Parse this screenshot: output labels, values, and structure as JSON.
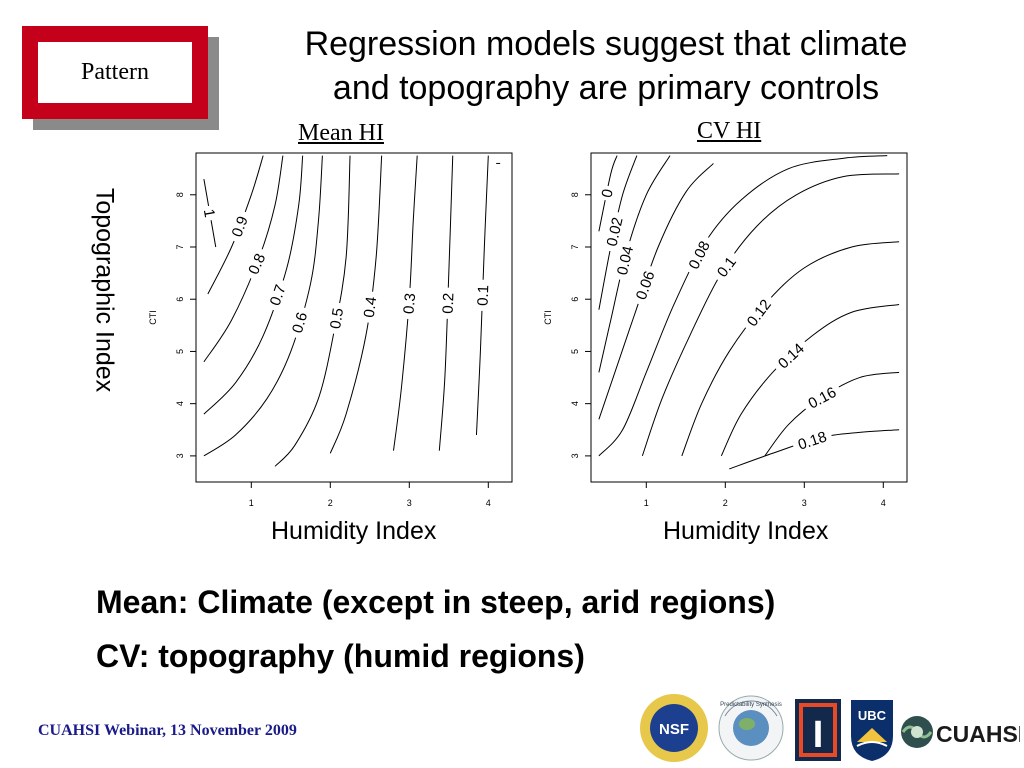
{
  "slide": {
    "tag": "Pattern",
    "title_line1": "Regression models suggest that climate",
    "title_line2": "and topography are primary controls",
    "row_label": "Topographic Index",
    "bullet1": "Mean:  Climate (except in steep, arid regions)",
    "bullet2": "CV: topography (humid regions)",
    "footer": "CUAHSI Webinar, 13 November 2009",
    "logos": [
      {
        "icon": "nsf-logo",
        "text": "NSF"
      },
      {
        "icon": "predictability-globe-logo",
        "text": "Predictability Synthesis"
      },
      {
        "icon": "illinois-logo",
        "text": "I"
      },
      {
        "icon": "ubc-logo",
        "text": "UBC"
      },
      {
        "icon": "cuahsi-logo",
        "text": "CUAHSI"
      }
    ]
  },
  "chart_data": [
    {
      "type": "contour",
      "title": "Mean HI",
      "xlabel": "Humidity Index",
      "ylabel": "CTI",
      "xlim": [
        0.3,
        4.3
      ],
      "ylim": [
        2.5,
        8.8
      ],
      "xticks": [
        1,
        2,
        3,
        4
      ],
      "yticks": [
        3,
        4,
        5,
        6,
        7,
        8
      ],
      "levels": [
        {
          "label": "1",
          "points": [
            [
              0.4,
              8.3
            ],
            [
              0.55,
              7.0
            ]
          ]
        },
        {
          "label": "0.9",
          "points": [
            [
              0.45,
              6.1
            ],
            [
              0.75,
              7.0
            ],
            [
              1.0,
              8.0
            ],
            [
              1.15,
              8.75
            ]
          ]
        },
        {
          "label": "0.8",
          "points": [
            [
              0.4,
              4.8
            ],
            [
              0.75,
              5.6
            ],
            [
              1.1,
              6.8
            ],
            [
              1.3,
              7.8
            ],
            [
              1.4,
              8.75
            ]
          ]
        },
        {
          "label": "0.7",
          "points": [
            [
              0.4,
              3.8
            ],
            [
              0.8,
              4.4
            ],
            [
              1.15,
              5.3
            ],
            [
              1.45,
              6.6
            ],
            [
              1.6,
              7.8
            ],
            [
              1.65,
              8.75
            ]
          ]
        },
        {
          "label": "0.6",
          "points": [
            [
              0.4,
              3.0
            ],
            [
              0.8,
              3.4
            ],
            [
              1.2,
              4.1
            ],
            [
              1.5,
              5.0
            ],
            [
              1.75,
              6.3
            ],
            [
              1.85,
              7.5
            ],
            [
              1.9,
              8.75
            ]
          ]
        },
        {
          "label": "0.5",
          "points": [
            [
              1.3,
              2.8
            ],
            [
              1.55,
              3.2
            ],
            [
              1.85,
              4.1
            ],
            [
              2.05,
              5.4
            ],
            [
              2.2,
              6.8
            ],
            [
              2.25,
              8.75
            ]
          ]
        },
        {
          "label": "0.4",
          "points": [
            [
              2.0,
              3.05
            ],
            [
              2.2,
              3.8
            ],
            [
              2.45,
              5.3
            ],
            [
              2.58,
              6.8
            ],
            [
              2.65,
              8.75
            ]
          ]
        },
        {
          "label": "0.3",
          "points": [
            [
              2.8,
              3.1
            ],
            [
              2.9,
              4.3
            ],
            [
              3.0,
              6.0
            ],
            [
              3.05,
              7.5
            ],
            [
              3.1,
              8.75
            ]
          ]
        },
        {
          "label": "0.2",
          "points": [
            [
              3.38,
              3.1
            ],
            [
              3.45,
              4.5
            ],
            [
              3.5,
              6.5
            ],
            [
              3.55,
              8.75
            ]
          ]
        },
        {
          "label": "0.1",
          "points": [
            [
              3.85,
              3.4
            ],
            [
              3.9,
              5.0
            ],
            [
              3.95,
              7.0
            ],
            [
              4.0,
              8.75
            ]
          ]
        },
        {
          "label": "",
          "points": [
            [
              4.1,
              8.6
            ],
            [
              4.15,
              8.6
            ]
          ]
        }
      ]
    },
    {
      "type": "contour",
      "title": "CV HI",
      "xlabel": "Humidity Index",
      "ylabel": "CTI",
      "xlim": [
        0.3,
        4.3
      ],
      "ylim": [
        2.5,
        8.8
      ],
      "xticks": [
        1,
        2,
        3,
        4
      ],
      "yticks": [
        3,
        4,
        5,
        6,
        7,
        8
      ],
      "levels": [
        {
          "label": "0",
          "points": [
            [
              0.4,
              7.3
            ],
            [
              0.55,
              8.4
            ],
            [
              0.63,
              8.75
            ]
          ]
        },
        {
          "label": "0.02",
          "points": [
            [
              0.4,
              5.8
            ],
            [
              0.55,
              7.0
            ],
            [
              0.7,
              8.0
            ],
            [
              0.88,
              8.75
            ]
          ]
        },
        {
          "label": "0.04",
          "points": [
            [
              0.4,
              4.6
            ],
            [
              0.55,
              5.6
            ],
            [
              0.75,
              6.9
            ],
            [
              1.0,
              8.0
            ],
            [
              1.3,
              8.75
            ]
          ]
        },
        {
          "label": "0.06",
          "points": [
            [
              0.4,
              3.7
            ],
            [
              0.58,
              4.5
            ],
            [
              0.85,
              5.7
            ],
            [
              1.15,
              7.0
            ],
            [
              1.5,
              8.05
            ],
            [
              1.85,
              8.6
            ]
          ]
        },
        {
          "label": "0.08",
          "points": [
            [
              0.4,
              3.0
            ],
            [
              0.7,
              3.5
            ],
            [
              1.0,
              4.6
            ],
            [
              1.35,
              5.9
            ],
            [
              1.75,
              7.1
            ],
            [
              2.2,
              7.9
            ],
            [
              2.8,
              8.5
            ],
            [
              3.5,
              8.7
            ],
            [
              4.05,
              8.75
            ]
          ]
        },
        {
          "label": "0.1",
          "points": [
            [
              0.95,
              3.0
            ],
            [
              1.2,
              4.1
            ],
            [
              1.55,
              5.3
            ],
            [
              1.95,
              6.5
            ],
            [
              2.4,
              7.4
            ],
            [
              2.9,
              8.0
            ],
            [
              3.5,
              8.35
            ],
            [
              4.2,
              8.4
            ]
          ]
        },
        {
          "label": "0.12",
          "points": [
            [
              1.45,
              3.0
            ],
            [
              1.7,
              4.0
            ],
            [
              2.05,
              5.0
            ],
            [
              2.5,
              5.9
            ],
            [
              3.0,
              6.6
            ],
            [
              3.6,
              7.0
            ],
            [
              4.2,
              7.1
            ]
          ]
        },
        {
          "label": "0.14",
          "points": [
            [
              1.95,
              3.0
            ],
            [
              2.2,
              3.8
            ],
            [
              2.6,
              4.6
            ],
            [
              3.1,
              5.3
            ],
            [
              3.6,
              5.75
            ],
            [
              4.2,
              5.9
            ]
          ]
        },
        {
          "label": "0.16",
          "points": [
            [
              2.5,
              3.0
            ],
            [
              2.8,
              3.6
            ],
            [
              3.2,
              4.1
            ],
            [
              3.7,
              4.5
            ],
            [
              4.2,
              4.6
            ]
          ]
        },
        {
          "label": "0.18",
          "points": [
            [
              2.05,
              2.75
            ],
            [
              2.6,
              3.05
            ],
            [
              3.2,
              3.35
            ],
            [
              3.7,
              3.45
            ],
            [
              4.2,
              3.5
            ]
          ]
        }
      ]
    }
  ]
}
